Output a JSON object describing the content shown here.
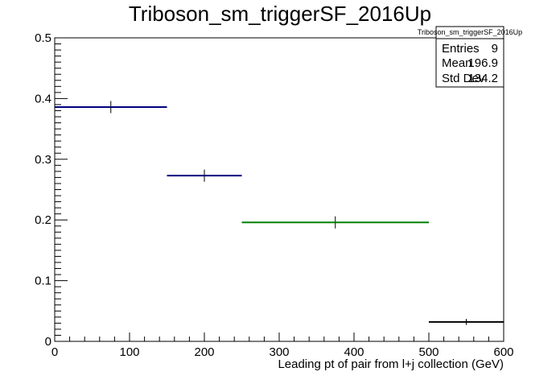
{
  "chart_data": {
    "type": "histogram",
    "title": "Triboson_sm_triggerSF_2016Up",
    "xlabel": "Leading pt of pair from l+j collection (GeV)",
    "ylabel": "",
    "xlim": [
      0,
      600
    ],
    "ylim": [
      0,
      0.5
    ],
    "x_ticks": [
      "0",
      "100",
      "200",
      "300",
      "400",
      "500",
      "600"
    ],
    "y_ticks": [
      "0",
      "0.1",
      "0.2",
      "0.3",
      "0.4",
      "0.5"
    ],
    "grid": false,
    "bins": [
      {
        "x_low": 0,
        "x_high": 150,
        "x_center": 75,
        "y": 0.386,
        "err": 0.01,
        "color": "#00007f"
      },
      {
        "x_low": 150,
        "x_high": 250,
        "x_center": 200,
        "y": 0.273,
        "err": 0.01,
        "color": "#00007f"
      },
      {
        "x_low": 250,
        "x_high": 500,
        "x_center": 375,
        "y": 0.196,
        "err": 0.01,
        "color": "#008000"
      },
      {
        "x_low": 500,
        "x_high": 600,
        "x_center": 550,
        "y": 0.032,
        "err": 0.005,
        "color": "#000000"
      }
    ],
    "stats_box": {
      "title": "Triboson_sm_triggerSF_2016Up",
      "rows": [
        {
          "label": "Entries",
          "value": "9"
        },
        {
          "label": "Mean",
          "value": "196.9"
        },
        {
          "label": "Std Dev",
          "value": "134.2"
        }
      ]
    }
  }
}
